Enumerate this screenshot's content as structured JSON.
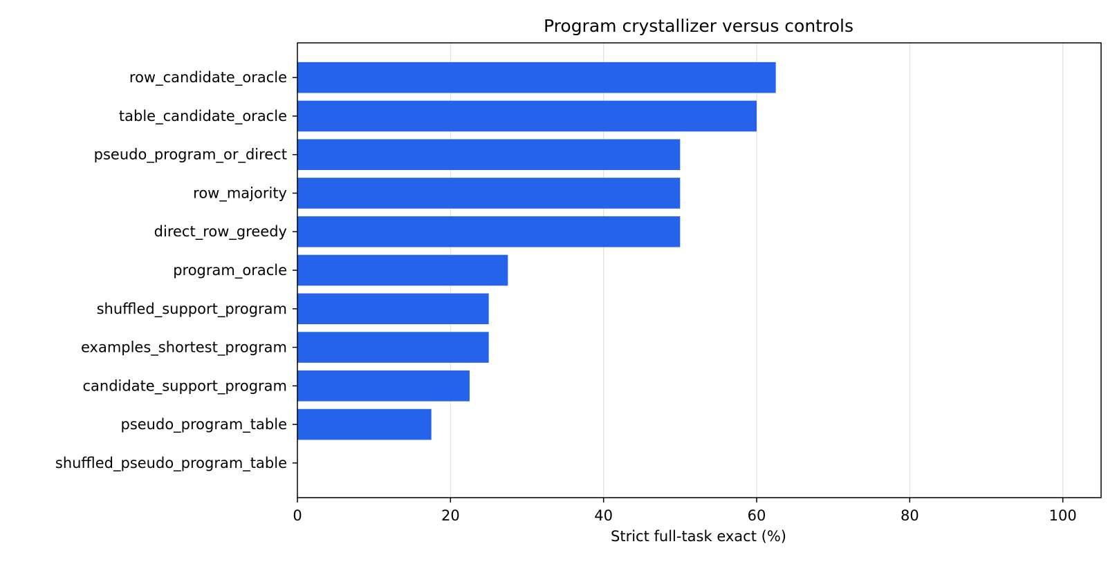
{
  "chart_data": {
    "type": "bar",
    "orientation": "horizontal",
    "title": "Program crystallizer versus controls",
    "xlabel": "Strict full-task exact (%)",
    "ylabel": "",
    "xlim": [
      0,
      105
    ],
    "xticks": [
      0,
      20,
      40,
      60,
      80,
      100
    ],
    "grid": "vertical",
    "bar_color": "#2563eb",
    "categories": [
      "row_candidate_oracle",
      "table_candidate_oracle",
      "pseudo_program_or_direct",
      "row_majority",
      "direct_row_greedy",
      "program_oracle",
      "shuffled_support_program",
      "examples_shortest_program",
      "candidate_support_program",
      "pseudo_program_table",
      "shuffled_pseudo_program_table"
    ],
    "values": [
      62.5,
      60.0,
      50.0,
      50.0,
      50.0,
      27.5,
      25.0,
      25.0,
      22.5,
      17.5,
      0.0
    ]
  }
}
